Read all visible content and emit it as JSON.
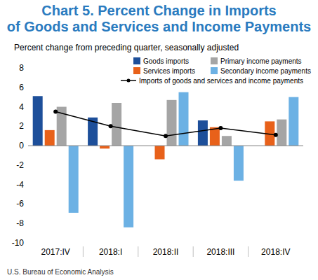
{
  "chart_data": {
    "type": "bar",
    "title": "Chart 5. Percent Change in Imports of Goods and Services and Income Payments",
    "subtitle": "Percent change from preceding quarter, seasonally adjusted",
    "source": "U.S. Bureau of Economic Analysis",
    "categories": [
      "2017:IV",
      "2018:I",
      "2018:II",
      "2018:III",
      "2018:IV"
    ],
    "series": [
      {
        "name": "Goods imports",
        "color": "#1d4f9a",
        "values": [
          5.1,
          2.9,
          0.0,
          2.6,
          0.0
        ]
      },
      {
        "name": "Services imports",
        "color": "#e8611a",
        "values": [
          1.6,
          -0.3,
          -1.4,
          1.9,
          2.5
        ]
      },
      {
        "name": "Primary income payments",
        "color": "#a5a5a5",
        "values": [
          4.0,
          4.4,
          4.7,
          1.0,
          2.7
        ]
      },
      {
        "name": "Secondary income payments",
        "color": "#6cb1e4",
        "values": [
          -6.9,
          -8.4,
          5.5,
          -3.6,
          5.0
        ]
      },
      {
        "name": "Imports of goods and services and income payments",
        "color": "#000000",
        "type": "line",
        "marker": "circle",
        "values": [
          3.5,
          2.0,
          1.0,
          1.8,
          1.1
        ]
      }
    ],
    "ylim": [
      -10,
      8
    ],
    "yticks": [
      -10,
      -8,
      -6,
      -4,
      -2,
      0,
      2,
      4,
      6,
      8
    ],
    "grid": false,
    "legend": "top-right"
  }
}
